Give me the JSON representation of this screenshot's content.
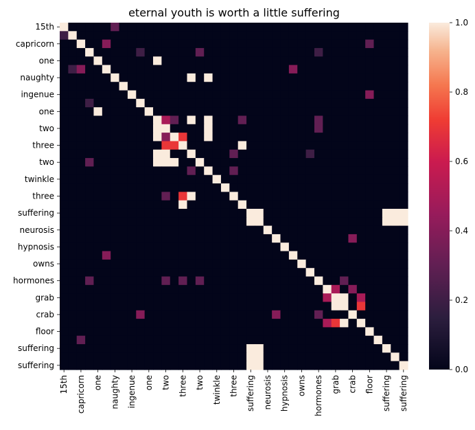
{
  "chart_data": {
    "type": "heatmap",
    "title": "eternal youth is worth a little suffering",
    "xlabel": "",
    "ylabel": "",
    "labels": [
      "15th",
      "",
      "capricorn",
      "",
      "one",
      "",
      "naughty",
      "",
      "ingenue",
      "",
      "one",
      "",
      "two",
      "",
      "three",
      "",
      "two",
      "",
      "twinkle",
      "",
      "three",
      "",
      "suffering",
      "",
      "neurosis",
      "",
      "hypnosis",
      "",
      "owns",
      "",
      "hormones",
      "",
      "grab",
      "",
      "crab",
      "",
      "floor",
      "",
      "suffering",
      "",
      "suffering"
    ],
    "x_tick_labels": [
      "15th",
      "capricorn",
      "one",
      "naughty",
      "ingenue",
      "one",
      "two",
      "three",
      "two",
      "twinkle",
      "three",
      "suffering",
      "neurosis",
      "hypnosis",
      "owns",
      "hormones",
      "grab",
      "crab",
      "floor",
      "suffering",
      "suffering"
    ],
    "y_tick_labels": [
      "15th",
      "capricorn",
      "one",
      "naughty",
      "ingenue",
      "one",
      "two",
      "three",
      "two",
      "twinkle",
      "three",
      "suffering",
      "neurosis",
      "hypnosis",
      "owns",
      "hormones",
      "grab",
      "crab",
      "floor",
      "suffering",
      "suffering"
    ],
    "colorbar": {
      "min": 0.0,
      "max": 1.0,
      "ticks": [
        "0.0",
        "0.2",
        "0.4",
        "0.6",
        "0.8",
        "1.0"
      ],
      "colormap": "rocket"
    },
    "n": 41,
    "diagonal": 1.0,
    "cells": [
      [
        0,
        6,
        0.3
      ],
      [
        1,
        0,
        0.2
      ],
      [
        2,
        5,
        0.4
      ],
      [
        2,
        36,
        0.3
      ],
      [
        3,
        9,
        0.2
      ],
      [
        3,
        16,
        0.3
      ],
      [
        3,
        30,
        0.2
      ],
      [
        4,
        11,
        1.0
      ],
      [
        5,
        1,
        0.2
      ],
      [
        5,
        2,
        0.4
      ],
      [
        5,
        27,
        0.4
      ],
      [
        6,
        15,
        1.0
      ],
      [
        6,
        17,
        1.0
      ],
      [
        8,
        36,
        0.4
      ],
      [
        9,
        3,
        0.2
      ],
      [
        10,
        4,
        1.0
      ],
      [
        11,
        12,
        0.5
      ],
      [
        11,
        13,
        0.3
      ],
      [
        11,
        21,
        0.3
      ],
      [
        11,
        30,
        0.3
      ],
      [
        11,
        15,
        1.0
      ],
      [
        11,
        17,
        1.0
      ],
      [
        12,
        11,
        1.0
      ],
      [
        12,
        17,
        1.0
      ],
      [
        12,
        30,
        0.3
      ],
      [
        13,
        12,
        0.4
      ],
      [
        13,
        14,
        0.7
      ],
      [
        13,
        11,
        1.0
      ],
      [
        13,
        17,
        1.0
      ],
      [
        14,
        12,
        0.7
      ],
      [
        14,
        13,
        0.7
      ],
      [
        14,
        21,
        1.0
      ],
      [
        15,
        11,
        1.0
      ],
      [
        15,
        12,
        1.0
      ],
      [
        15,
        20,
        0.3
      ],
      [
        15,
        29,
        0.2
      ],
      [
        16,
        3,
        0.3
      ],
      [
        16,
        11,
        1.0
      ],
      [
        16,
        12,
        1.0
      ],
      [
        16,
        13,
        1.0
      ],
      [
        17,
        15,
        0.3
      ],
      [
        17,
        20,
        0.3
      ],
      [
        20,
        12,
        0.3
      ],
      [
        20,
        14,
        0.7
      ],
      [
        20,
        15,
        1.0
      ],
      [
        21,
        14,
        1.0
      ],
      [
        22,
        38,
        1.0
      ],
      [
        22,
        39,
        1.0
      ],
      [
        22,
        40,
        1.0
      ],
      [
        22,
        23,
        1.0
      ],
      [
        23,
        22,
        1.0
      ],
      [
        38,
        22,
        1.0
      ],
      [
        39,
        22,
        1.0
      ],
      [
        40,
        22,
        1.0
      ],
      [
        38,
        23,
        1.0
      ],
      [
        39,
        23,
        1.0
      ],
      [
        40,
        23,
        1.0
      ],
      [
        23,
        38,
        1.0
      ],
      [
        23,
        39,
        1.0
      ],
      [
        23,
        40,
        1.0
      ],
      [
        25,
        34,
        0.4
      ],
      [
        27,
        5,
        0.4
      ],
      [
        30,
        3,
        0.3
      ],
      [
        30,
        12,
        0.3
      ],
      [
        30,
        14,
        0.3
      ],
      [
        30,
        16,
        0.3
      ],
      [
        30,
        33,
        0.3
      ],
      [
        31,
        32,
        0.5
      ],
      [
        31,
        34,
        0.4
      ],
      [
        32,
        31,
        0.5
      ],
      [
        32,
        33,
        1.0
      ],
      [
        32,
        35,
        0.5
      ],
      [
        33,
        32,
        1.0
      ],
      [
        33,
        35,
        0.7
      ],
      [
        34,
        9,
        0.4
      ],
      [
        34,
        25,
        0.4
      ],
      [
        34,
        30,
        0.3
      ],
      [
        35,
        31,
        0.5
      ],
      [
        35,
        32,
        0.7
      ],
      [
        35,
        33,
        1.0
      ],
      [
        37,
        2,
        0.3
      ]
    ]
  }
}
